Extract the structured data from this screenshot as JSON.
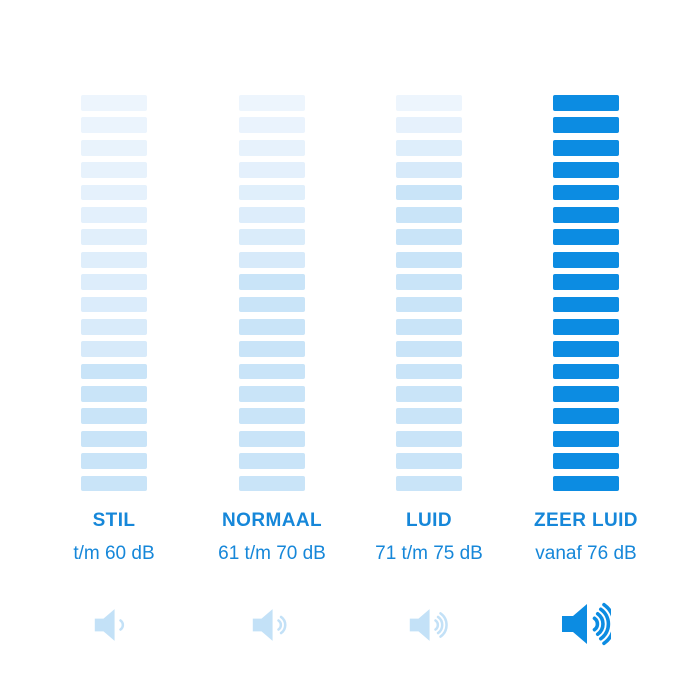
{
  "chart_data": {
    "type": "bar",
    "title": "",
    "xlabel": "",
    "ylabel": "",
    "categories": [
      "STIL",
      "NORMAAL",
      "LUID",
      "ZEER LUID"
    ],
    "category_ranges": [
      "t/m 60 dB",
      "61 t/m 70 dB",
      "71 t/m 75 dB",
      "vanaf 76 dB"
    ],
    "series": [
      {
        "name": "filled-segments",
        "values": [
          6,
          10,
          14,
          18
        ]
      },
      {
        "name": "total-segments",
        "values": [
          18,
          18,
          18,
          18
        ]
      }
    ],
    "ylim": [
      0,
      18
    ],
    "grid": false,
    "legend": false,
    "orientation": "vertical-segmented-columns"
  },
  "columns": [
    {
      "label": "STIL",
      "range": "t/m 60 dB",
      "bars": 18,
      "filled_from": 13,
      "variant": "light",
      "icon": "speaker-1-wave-icon",
      "icon_arcs": 1
    },
    {
      "label": "NORMAAL",
      "range": "61 t/m 70 dB",
      "bars": 18,
      "filled_from": 9,
      "variant": "light",
      "icon": "speaker-2-waves-icon",
      "icon_arcs": 2
    },
    {
      "label": "LUID",
      "range": "71 t/m 75 dB",
      "bars": 18,
      "filled_from": 5,
      "variant": "light",
      "icon": "speaker-3-waves-icon",
      "icon_arcs": 3
    },
    {
      "label": "ZEER LUID",
      "range": "vanaf 76 dB",
      "bars": 18,
      "filled_from": 1,
      "variant": "solid",
      "icon": "speaker-4-waves-icon",
      "icon_arcs": 4
    }
  ],
  "colors": {
    "background": "#ffffff",
    "solid_blue": "#0c8ce2",
    "filled_light": "#c9e4f8",
    "unfilled_top": "#edf5fd",
    "unfilled_bottom": "#d7eafa",
    "icon_light": "#c3e1f7",
    "text_blue": "#1687d9"
  }
}
